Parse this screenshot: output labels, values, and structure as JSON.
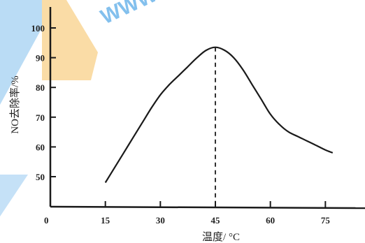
{
  "chart_data": {
    "type": "line",
    "xlabel": "温度/ °C",
    "ylabel": "NO去除率/%",
    "origin_label": "0",
    "x_ticks": [
      15,
      30,
      45,
      60,
      75
    ],
    "y_ticks": [
      50,
      60,
      70,
      80,
      90,
      100
    ],
    "xlim": [
      0,
      80
    ],
    "ylim": [
      40,
      100
    ],
    "grid": false,
    "series": [
      {
        "x": [
          15,
          17.5,
          20,
          22.5,
          25,
          27.5,
          30,
          32.5,
          35,
          37.5,
          40,
          42.5,
          45,
          47.5,
          50,
          52.5,
          55,
          57.5,
          60,
          62.5,
          65,
          67.5,
          70,
          72.5,
          75,
          77
        ],
        "values": [
          48,
          53,
          58,
          63,
          68,
          73,
          77.5,
          81,
          84,
          87,
          90,
          92.5,
          93.5,
          92.5,
          90,
          86,
          81,
          76,
          71,
          67.5,
          65,
          63.5,
          62,
          60.5,
          59,
          58
        ]
      }
    ],
    "annotations": [
      {
        "type": "vertical-dashed",
        "x": 45,
        "y_top": 93.5
      }
    ],
    "colors": {
      "line": "#1a1a1a",
      "axis": "#1a1a1a"
    },
    "watermark": {
      "text": "WWW",
      "colors": [
        "#1f8de0",
        "#f5b942"
      ]
    }
  }
}
